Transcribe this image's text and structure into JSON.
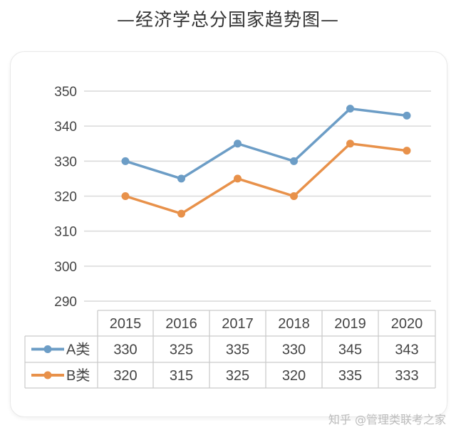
{
  "title": "—经济学总分国家趋势图—",
  "watermark": "知乎 @管理类联考之家",
  "colors": {
    "a": "#6c9dc6",
    "b": "#e8914a"
  },
  "chart_data": {
    "type": "line",
    "title": "—经济学总分国家趋势图—",
    "categories": [
      "2015",
      "2016",
      "2017",
      "2018",
      "2019",
      "2020"
    ],
    "series": [
      {
        "name": "A类",
        "values": [
          330,
          325,
          335,
          330,
          345,
          343
        ],
        "color": "#6c9dc6"
      },
      {
        "name": "B类",
        "values": [
          320,
          315,
          325,
          320,
          335,
          333
        ],
        "color": "#e8914a"
      }
    ],
    "yticks": [
      290,
      300,
      310,
      320,
      330,
      340,
      350
    ],
    "ylim": [
      290,
      350
    ],
    "grid": true,
    "legend": "data-table"
  }
}
